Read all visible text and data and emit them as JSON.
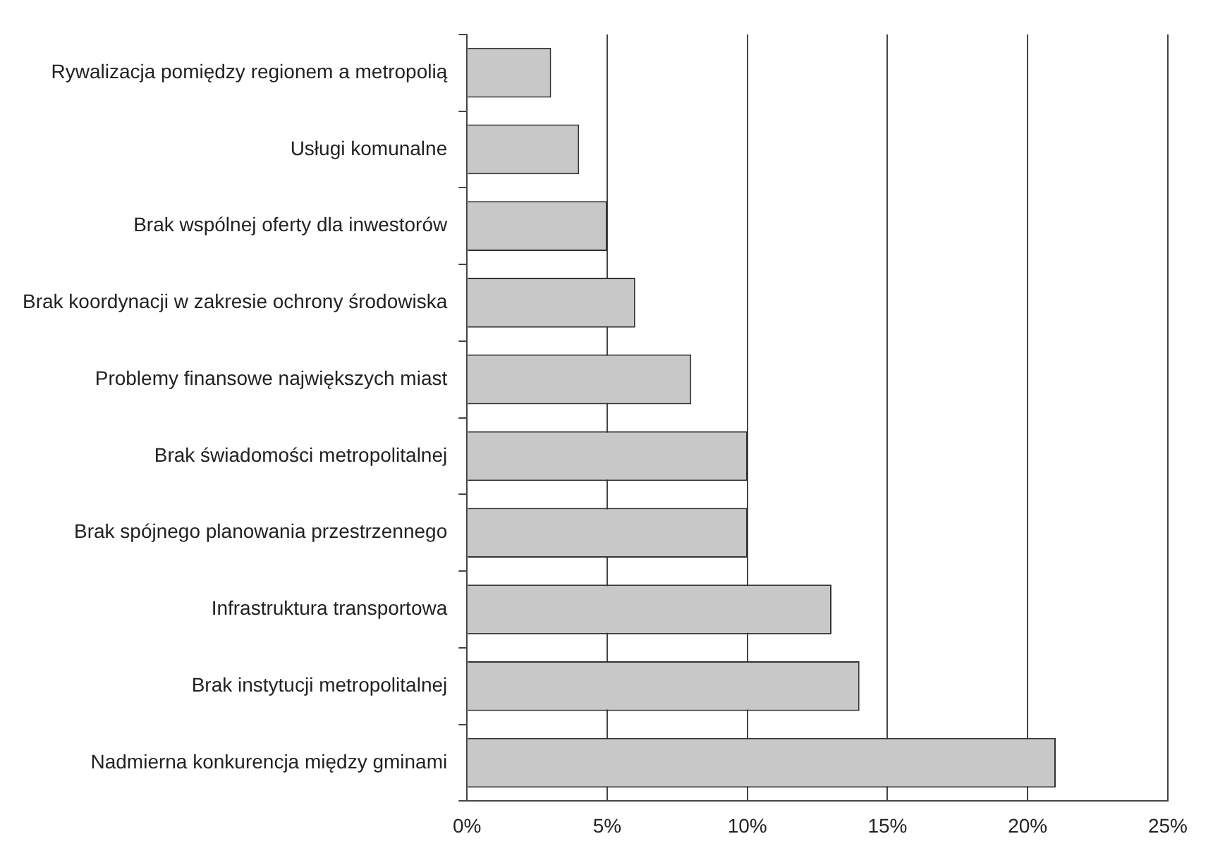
{
  "chart_data": {
    "type": "bar",
    "orientation": "horizontal",
    "categories": [
      "Rywalizacja pomiędzy regionem a metropolią",
      "Usługi komunalne",
      "Brak wspólnej oferty dla inwestorów",
      "Brak koordynacji w zakresie ochrony środowiska",
      "Problemy finansowe największych miast",
      "Brak świadomości metropolitalnej",
      "Brak spójnego planowania przestrzennego",
      "Infrastruktura transportowa",
      "Brak instytucji metropolitalnej",
      "Nadmierna konkurencja między gminami"
    ],
    "values": [
      3,
      4,
      5,
      6,
      8,
      10,
      10,
      13,
      14,
      21
    ],
    "color": "#c8c8c8",
    "xlim": [
      0,
      25
    ],
    "xticks": [
      {
        "value": 0,
        "label": "0%"
      },
      {
        "value": 5,
        "label": "5%"
      },
      {
        "value": 10,
        "label": "10%"
      },
      {
        "value": 15,
        "label": "15%"
      },
      {
        "value": 20,
        "label": "20%"
      },
      {
        "value": 25,
        "label": "25%"
      }
    ],
    "grid": "x",
    "legend": false
  }
}
